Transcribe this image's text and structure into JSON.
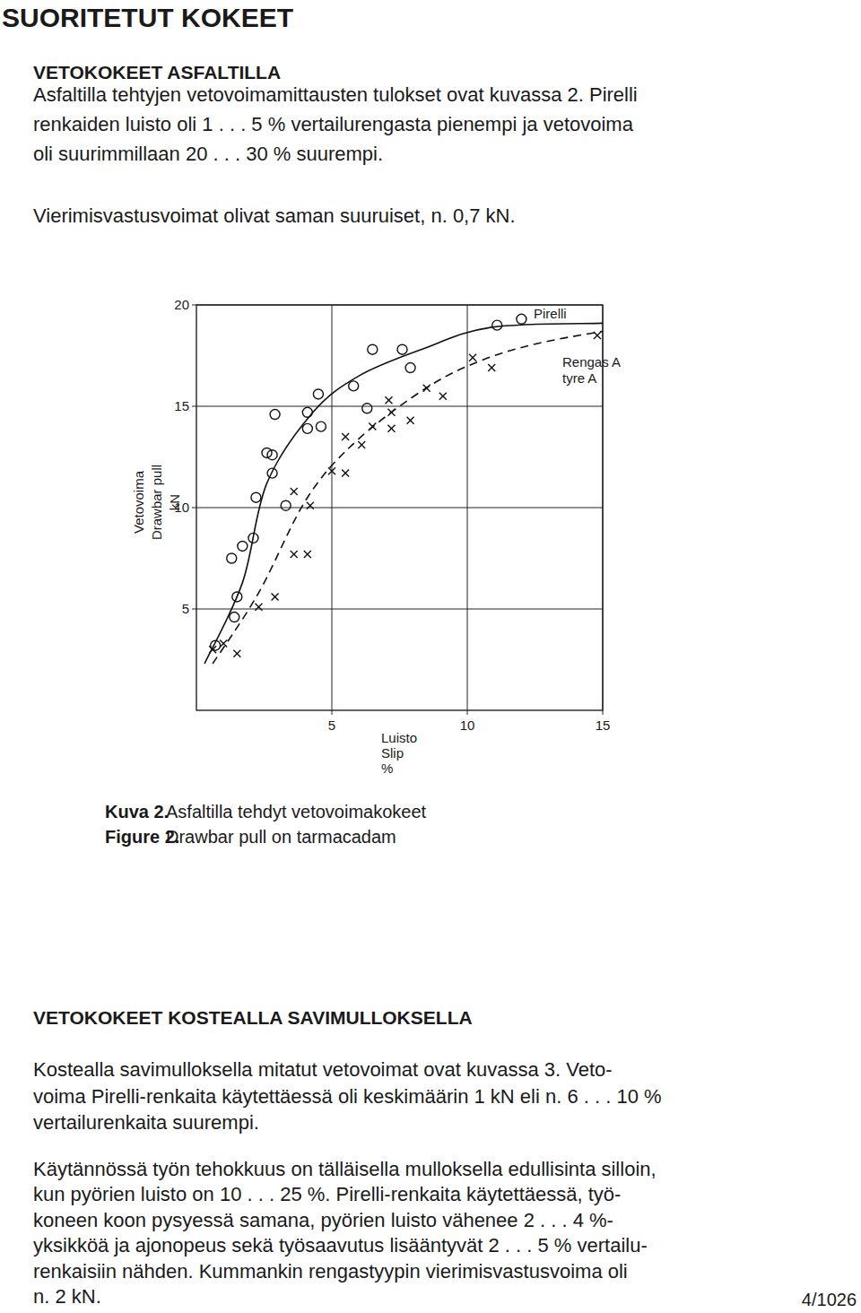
{
  "header": {
    "title": "SUORITETUT KOKEET"
  },
  "sections": [
    {
      "heading": "VETOKOKEET ASFALTILLA",
      "paragraphs": [
        [
          "Asfaltilla tehtyjen vetovoimamittausten tulokset ovat kuvassa 2. Pirelli",
          "renkaiden luisto oli 1 . . . 5 % vertailurengasta pienempi ja vetovoima",
          "oli suurimmillaan 20 . . . 30 % suurempi."
        ],
        [
          "Vierimisvastusvoimat olivat saman suuruiset, n. 0,7 kN."
        ]
      ]
    },
    {
      "heading": "VETOKOKEET KOSTEALLA SAVIMULLOKSELLA",
      "paragraphs": [
        [
          "Kostealla savimulloksella mitatut vetovoimat ovat kuvassa 3. Veto-",
          "voima Pirelli-renkaita käytettäessä oli keskimäärin 1 kN eli n. 6 . . . 10 %",
          "vertailurenkaita suurempi."
        ],
        [
          "Käytännössä työn tehokkuus on tälläisella mulloksella edullisinta silloin,",
          "kun pyörien luisto on 10 . . . 25 %. Pirelli-renkaita käytettäessä, työ-",
          "koneen koon pysyessä samana, pyörien luisto vähenee 2 . . . 4 %-",
          "yksikköä ja ajonopeus sekä työsaavutus lisääntyvät 2 . . . 5 % vertailu-",
          "renkaisiin nähden. Kummankin rengastyypin vierimisvastusvoima oli",
          "n. 2 kN."
        ]
      ]
    }
  ],
  "figure": {
    "caption": [
      {
        "label": "Kuva 2.",
        "text": "Asfaltilla tehdyt vetovoimakokeet"
      },
      {
        "label": "Figure 2.",
        "text": "Drawbar pull on tarmacadam"
      }
    ]
  },
  "chart_data": {
    "type": "scatter",
    "x_label": [
      "Luisto",
      "Slip",
      "%"
    ],
    "y_label": [
      "Vetovoima",
      "Drawbar pull",
      "kN"
    ],
    "xlim": [
      0,
      15
    ],
    "xticks": [
      5,
      10,
      15
    ],
    "ylim": [
      0,
      20
    ],
    "yticks": [
      5,
      10,
      15,
      20
    ],
    "grid": true,
    "annotations": [
      "tyre A"
    ],
    "series": [
      {
        "name": "Pirelli",
        "type": "line",
        "line_style": "solid",
        "x": [
          0.3,
          1.7,
          2.6,
          4.3,
          6.0,
          8.3,
          10.9,
          15
        ],
        "values": [
          2.3,
          6.3,
          11.2,
          14.7,
          16.5,
          17.8,
          18.9,
          19.1
        ]
      },
      {
        "name": "Rengas A",
        "type": "line",
        "line_style": "dashed",
        "x": [
          0.6,
          2.3,
          4.1,
          6.0,
          8.6,
          10.6,
          12.6,
          15
        ],
        "values": [
          2.3,
          5.8,
          10.5,
          13.4,
          16.0,
          17.3,
          18.1,
          18.7
        ]
      },
      {
        "type": "scatter",
        "marker": "circle",
        "x": [
          11.1,
          12.0,
          6.5,
          7.6,
          7.9,
          5.8,
          6.3,
          2.9,
          4.1,
          4.5,
          4.1,
          4.6,
          2.6,
          2.8,
          2.8,
          2.2,
          3.3,
          2.1,
          1.7,
          1.3,
          1.5,
          1.4,
          0.7
        ],
        "values": [
          19.0,
          19.3,
          17.8,
          17.8,
          16.9,
          16.0,
          14.9,
          14.6,
          14.7,
          15.6,
          13.9,
          14.0,
          12.7,
          12.6,
          11.7,
          10.5,
          10.1,
          8.5,
          8.1,
          7.5,
          5.6,
          4.6,
          3.2
        ]
      },
      {
        "type": "scatter",
        "marker": "x",
        "x": [
          14.8,
          10.2,
          10.9,
          9.1,
          8.5,
          7.1,
          7.9,
          7.2,
          6.5,
          7.2,
          5.5,
          6.1,
          5.0,
          5.5,
          3.6,
          4.2,
          3.6,
          4.1,
          2.9,
          2.3,
          0.6,
          1.5,
          1.0
        ],
        "values": [
          18.5,
          17.4,
          16.9,
          15.5,
          15.9,
          15.3,
          14.3,
          13.9,
          14.0,
          14.7,
          13.5,
          13.1,
          11.8,
          11.7,
          10.8,
          10.1,
          7.7,
          7.7,
          5.6,
          5.1,
          3.0,
          2.8,
          3.3
        ]
      }
    ]
  },
  "footer": {
    "page": "4/1026"
  }
}
